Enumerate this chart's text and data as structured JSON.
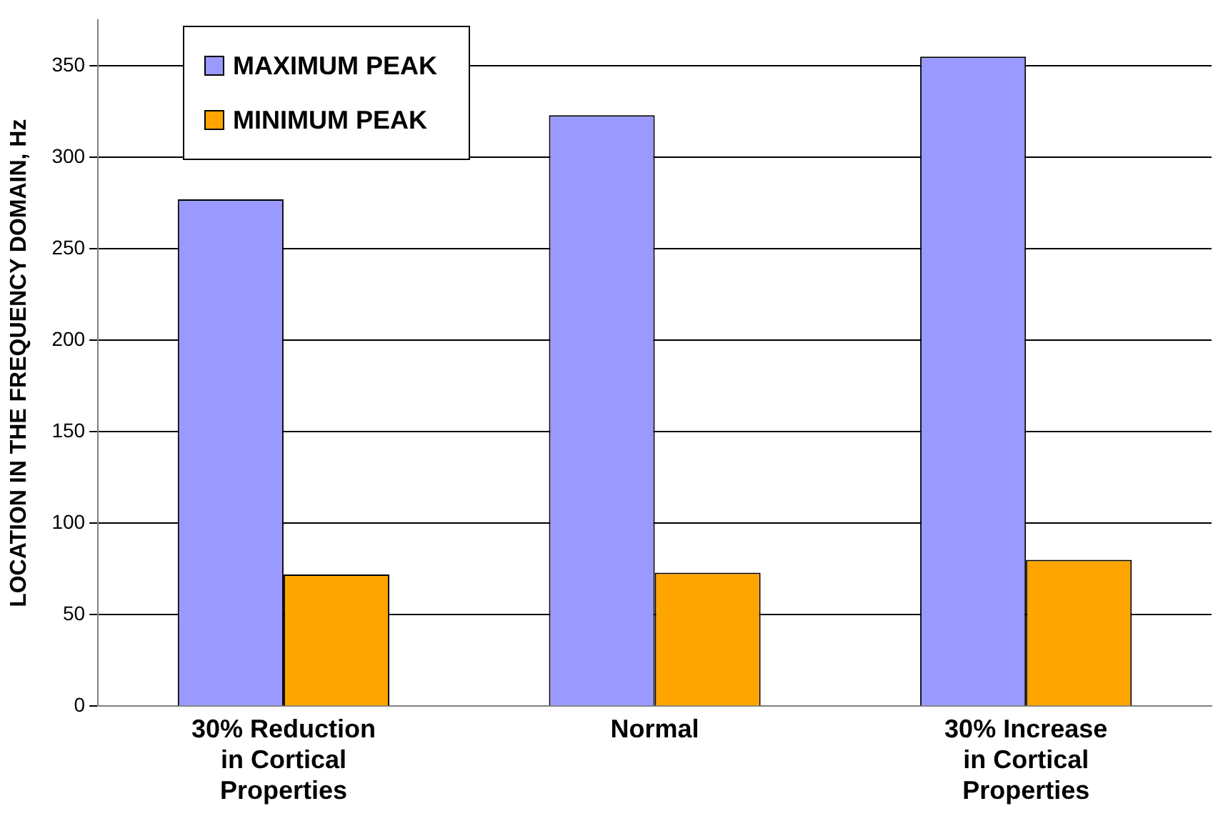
{
  "chart_data": {
    "type": "bar",
    "ylabel": "LOCATION IN THE FREQUENCY DOMAIN, Hz",
    "categories": [
      "30% Reduction\nin Cortical\nProperties",
      "Normal",
      "30% Increase\nin Cortical\nProperties"
    ],
    "series": [
      {
        "name": "MAXIMUM PEAK",
        "color": "#9999ff",
        "values": [
          277,
          323,
          355
        ]
      },
      {
        "name": "MINIMUM PEAK",
        "color": "#ffa500",
        "values": [
          72,
          73,
          80
        ]
      }
    ],
    "ylim": [
      0,
      375
    ],
    "yticks": [
      0,
      50,
      100,
      150,
      200,
      250,
      300,
      350
    ],
    "grid": "y",
    "legend": "top left"
  }
}
